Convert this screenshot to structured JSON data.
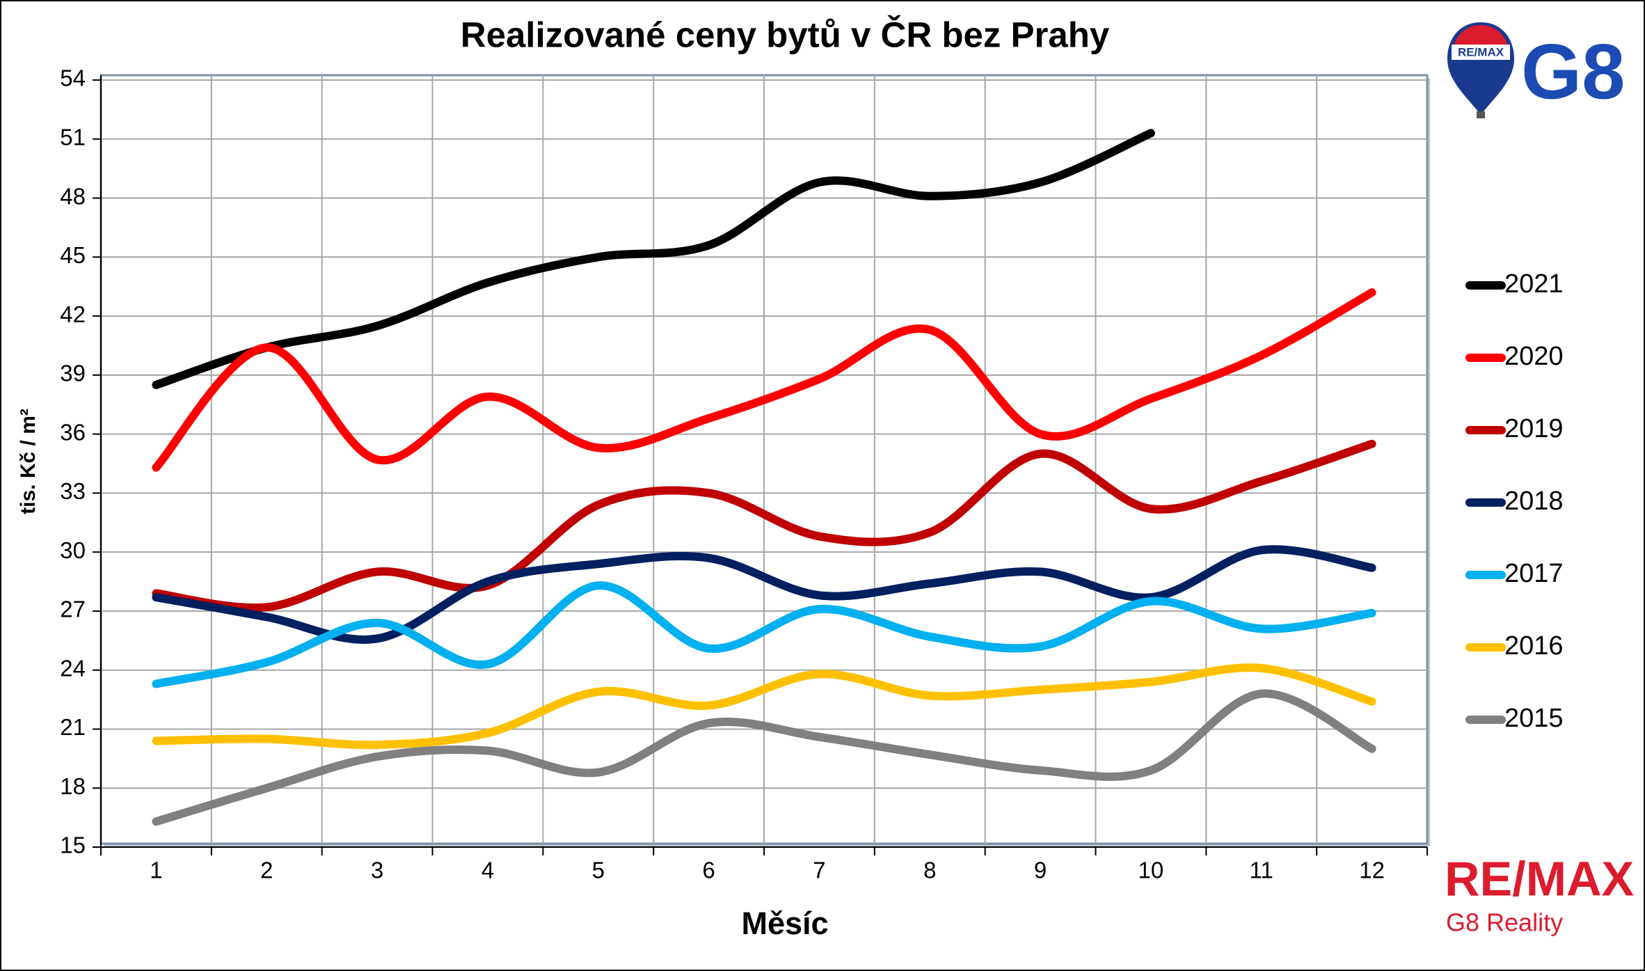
{
  "chart_data": {
    "type": "line",
    "title": "Realizované ceny bytů v ČR bez Prahy",
    "x_label": "Měsíc",
    "y_label": "tis. Kč / m²",
    "categories": [
      "1",
      "2",
      "3",
      "4",
      "5",
      "6",
      "7",
      "8",
      "9",
      "10",
      "11",
      "12"
    ],
    "ylim": [
      15,
      54
    ],
    "yticks": [
      15,
      18,
      21,
      24,
      27,
      30,
      33,
      36,
      39,
      42,
      45,
      48,
      51,
      54
    ],
    "grid": true,
    "legend": "right",
    "series": [
      {
        "name": "2021",
        "color": "#000000",
        "values": [
          38.5,
          40.4,
          41.5,
          43.7,
          45.0,
          45.6,
          48.8,
          48.1,
          48.8,
          51.3,
          null,
          null
        ]
      },
      {
        "name": "2020",
        "color": "#ff0000",
        "values": [
          34.3,
          40.4,
          34.7,
          37.9,
          35.3,
          36.8,
          38.8,
          41.3,
          36.0,
          37.8,
          40.0,
          43.2
        ]
      },
      {
        "name": "2019",
        "color": "#c00000",
        "values": [
          27.9,
          27.2,
          29.0,
          28.3,
          32.4,
          33.0,
          30.8,
          31.0,
          35.0,
          32.2,
          33.6,
          35.5
        ]
      },
      {
        "name": "2018",
        "color": "#002060",
        "values": [
          27.7,
          26.7,
          25.6,
          28.5,
          29.4,
          29.7,
          27.8,
          28.4,
          29.0,
          27.7,
          30.1,
          29.2
        ]
      },
      {
        "name": "2017",
        "color": "#00b0f0",
        "values": [
          23.3,
          24.4,
          26.4,
          24.3,
          28.3,
          25.1,
          27.1,
          25.7,
          25.2,
          27.5,
          26.1,
          26.9
        ]
      },
      {
        "name": "2016",
        "color": "#ffc000",
        "values": [
          20.4,
          20.5,
          20.2,
          20.8,
          22.9,
          22.2,
          23.8,
          22.7,
          23.0,
          23.4,
          24.1,
          22.4
        ]
      },
      {
        "name": "2015",
        "color": "#808080",
        "values": [
          16.3,
          18.0,
          19.6,
          19.9,
          18.8,
          21.3,
          20.6,
          19.7,
          18.9,
          18.9,
          22.8,
          20.0
        ]
      }
    ]
  },
  "logo": {
    "balloon_text": "RE/MAX",
    "g8": "G8",
    "brand": "RE/MAX",
    "office": "G8 Reality"
  }
}
